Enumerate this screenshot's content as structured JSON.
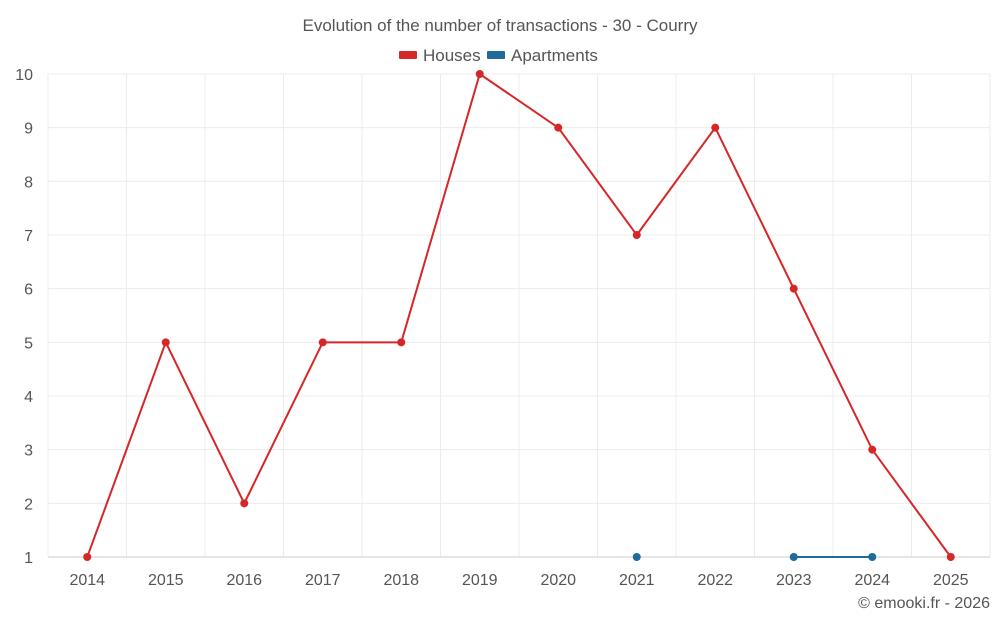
{
  "chart_data": {
    "type": "line",
    "title": "Evolution of the number of transactions - 30 - Courry",
    "xlabel": "",
    "ylabel": "",
    "categories": [
      "2014",
      "2015",
      "2016",
      "2017",
      "2018",
      "2019",
      "2020",
      "2021",
      "2022",
      "2023",
      "2024",
      "2025"
    ],
    "ylim": [
      1,
      10
    ],
    "yticks": [
      1,
      2,
      3,
      4,
      5,
      6,
      7,
      8,
      9,
      10
    ],
    "grid": true,
    "legend_position": "top-center",
    "series": [
      {
        "name": "Houses",
        "color": "#d62728",
        "values": [
          1,
          5,
          2,
          5,
          5,
          10,
          9,
          7,
          9,
          6,
          3,
          1
        ]
      },
      {
        "name": "Apartments",
        "color": "#1f6b9a",
        "values": [
          null,
          null,
          null,
          null,
          null,
          null,
          null,
          1,
          null,
          1,
          1,
          null
        ]
      }
    ]
  },
  "footer": {
    "credit": "© emooki.fr - 2026"
  }
}
